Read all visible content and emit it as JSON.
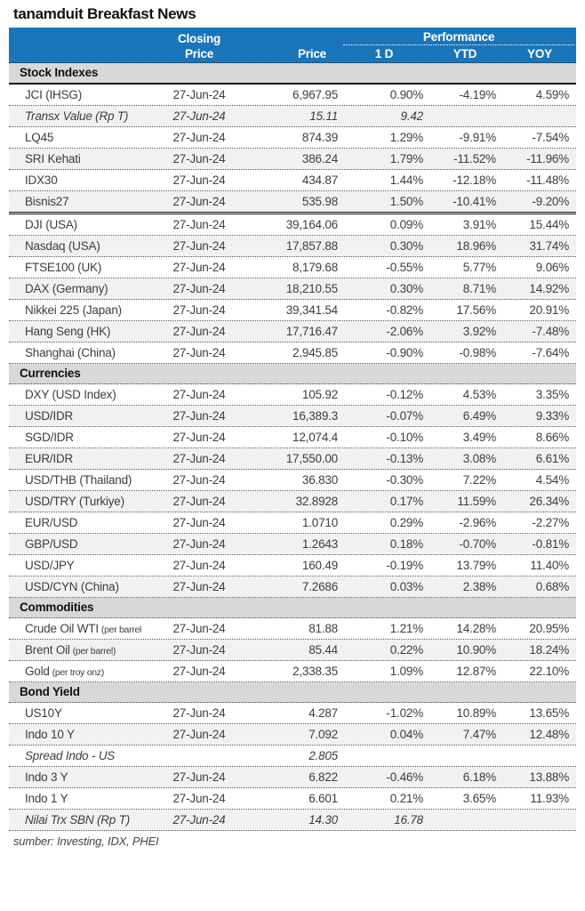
{
  "title": "tanamduit Breakfast News",
  "colors": {
    "header_blue": "#1B75BB",
    "section_band": "#D8D8D8",
    "alt_row": "#F1F1F1"
  },
  "header": {
    "closing_top": "Closing",
    "closing_bottom": "Price",
    "price": "Price",
    "performance": "Performance",
    "perf_cols": [
      "1 D",
      "YTD",
      "YOY"
    ]
  },
  "footer": {
    "source": "sumber: Investing, IDX, PHEI"
  },
  "sections": [
    {
      "title": "Stock Indexes",
      "rows": [
        {
          "label": "JCI (IHSG)",
          "date": "27-Jun-24",
          "price": "6,967.95",
          "d1": "0.90%",
          "ytd": "-4.19%",
          "yoy": "4.59%"
        },
        {
          "label": "Transx Value (Rp T)",
          "italic": true,
          "date": "27-Jun-24",
          "price": "15.11",
          "d1": "9.42",
          "ytd": "",
          "yoy": ""
        },
        {
          "label": "LQ45",
          "date": "27-Jun-24",
          "price": "874.39",
          "d1": "1.29%",
          "ytd": "-9.91%",
          "yoy": "-7.54%"
        },
        {
          "label": "SRI Kehati",
          "date": "27-Jun-24",
          "price": "386.24",
          "d1": "1.79%",
          "ytd": "-11.52%",
          "yoy": "-11.96%"
        },
        {
          "label": "IDX30",
          "date": "27-Jun-24",
          "price": "434.87",
          "d1": "1.44%",
          "ytd": "-12.18%",
          "yoy": "-11.48%"
        },
        {
          "label": "Bisnis27",
          "date": "27-Jun-24",
          "price": "535.98",
          "d1": "1.50%",
          "ytd": "-10.41%",
          "yoy": "-9.20%",
          "solid_border_after": true
        },
        {
          "label": "DJI (USA)",
          "date": "27-Jun-24",
          "price": "39,164.06",
          "d1": "0.09%",
          "ytd": "3.91%",
          "yoy": "15.44%"
        },
        {
          "label": "Nasdaq (USA)",
          "date": "27-Jun-24",
          "price": "17,857.88",
          "d1": "0.30%",
          "ytd": "18.96%",
          "yoy": "31.74%"
        },
        {
          "label": "FTSE100 (UK)",
          "date": "27-Jun-24",
          "price": "8,179.68",
          "d1": "-0.55%",
          "ytd": "5.77%",
          "yoy": "9.06%"
        },
        {
          "label": "DAX (Germany)",
          "date": "27-Jun-24",
          "price": "18,210.55",
          "d1": "0.30%",
          "ytd": "8.71%",
          "yoy": "14.92%"
        },
        {
          "label": "Nikkei 225 (Japan)",
          "date": "27-Jun-24",
          "price": "39,341.54",
          "d1": "-0.82%",
          "ytd": "17.56%",
          "yoy": "20.91%"
        },
        {
          "label": "Hang Seng (HK)",
          "date": "27-Jun-24",
          "price": "17,716.47",
          "d1": "-2.06%",
          "ytd": "3.92%",
          "yoy": "-7.48%"
        },
        {
          "label": "Shanghai (China)",
          "date": "27-Jun-24",
          "price": "2,945.85",
          "d1": "-0.90%",
          "ytd": "-0.98%",
          "yoy": "-7.64%"
        }
      ]
    },
    {
      "title": "Currencies",
      "rows": [
        {
          "label": "DXY (USD Index)",
          "date": "27-Jun-24",
          "price": "105.92",
          "d1": "-0.12%",
          "ytd": "4.53%",
          "yoy": "3.35%"
        },
        {
          "label": "USD/IDR",
          "date": "27-Jun-24",
          "price": "16,389.3",
          "d1": "-0.07%",
          "ytd": "6.49%",
          "yoy": "9.33%"
        },
        {
          "label": "SGD/IDR",
          "date": "27-Jun-24",
          "price": "12,074.4",
          "d1": "-0.10%",
          "ytd": "3.49%",
          "yoy": "8.66%"
        },
        {
          "label": "EUR/IDR",
          "date": "27-Jun-24",
          "price": "17,550.00",
          "d1": "-0.13%",
          "ytd": "3.08%",
          "yoy": "6.61%"
        },
        {
          "label": "USD/THB (Thailand)",
          "date": "27-Jun-24",
          "price": "36.830",
          "d1": "-0.30%",
          "ytd": "7.22%",
          "yoy": "4.54%"
        },
        {
          "label": "USD/TRY (Turkiye)",
          "date": "27-Jun-24",
          "price": "32.8928",
          "d1": "0.17%",
          "ytd": "11.59%",
          "yoy": "26.34%"
        },
        {
          "label": "EUR/USD",
          "date": "27-Jun-24",
          "price": "1.0710",
          "d1": "0.29%",
          "ytd": "-2.96%",
          "yoy": "-2.27%"
        },
        {
          "label": "GBP/USD",
          "date": "27-Jun-24",
          "price": "1.2643",
          "d1": "0.18%",
          "ytd": "-0.70%",
          "yoy": "-0.81%"
        },
        {
          "label": "USD/JPY",
          "date": "27-Jun-24",
          "price": "160.49",
          "d1": "-0.19%",
          "ytd": "13.79%",
          "yoy": "11.40%"
        },
        {
          "label": "USD/CYN (China)",
          "date": "27-Jun-24",
          "price": "7.2686",
          "d1": "0.03%",
          "ytd": "2.38%",
          "yoy": "0.68%"
        }
      ]
    },
    {
      "title": "Commodities",
      "rows": [
        {
          "label": "Crude Oil WTI",
          "label_suffix": "(per barrel",
          "date": "27-Jun-24",
          "price": "81.88",
          "d1": "1.21%",
          "ytd": "14.28%",
          "yoy": "20.95%"
        },
        {
          "label": "Brent Oil",
          "label_suffix": "(per barrel)",
          "date": "27-Jun-24",
          "price": "85.44",
          "d1": "0.22%",
          "ytd": "10.90%",
          "yoy": "18.24%"
        },
        {
          "label": "Gold",
          "label_suffix": "(per troy onz)",
          "date": "27-Jun-24",
          "price": "2,338.35",
          "d1": "1.09%",
          "ytd": "12.87%",
          "yoy": "22.10%"
        }
      ]
    },
    {
      "title": "Bond Yield",
      "rows": [
        {
          "label": "US10Y",
          "date": "27-Jun-24",
          "price": "4.287",
          "d1": "-1.02%",
          "ytd": "10.89%",
          "yoy": "13.65%"
        },
        {
          "label": "Indo 10 Y",
          "date": "27-Jun-24",
          "price": "7.092",
          "d1": "0.04%",
          "ytd": "7.47%",
          "yoy": "12.48%"
        },
        {
          "label": "Spread Indo - US",
          "italic": true,
          "date": "",
          "price": "2.805",
          "d1": "",
          "ytd": "",
          "yoy": ""
        },
        {
          "label": "Indo 3 Y",
          "date": "27-Jun-24",
          "price": "6.822",
          "d1": "-0.46%",
          "ytd": "6.18%",
          "yoy": "13.88%"
        },
        {
          "label": "Indo 1 Y",
          "date": "27-Jun-24",
          "price": "6.601",
          "d1": "0.21%",
          "ytd": "3.65%",
          "yoy": "11.93%"
        },
        {
          "label": "Nilai Trx SBN (Rp T)",
          "italic": true,
          "date": "27-Jun-24",
          "price": "14.30",
          "d1": "16.78",
          "ytd": "",
          "yoy": ""
        }
      ]
    }
  ]
}
